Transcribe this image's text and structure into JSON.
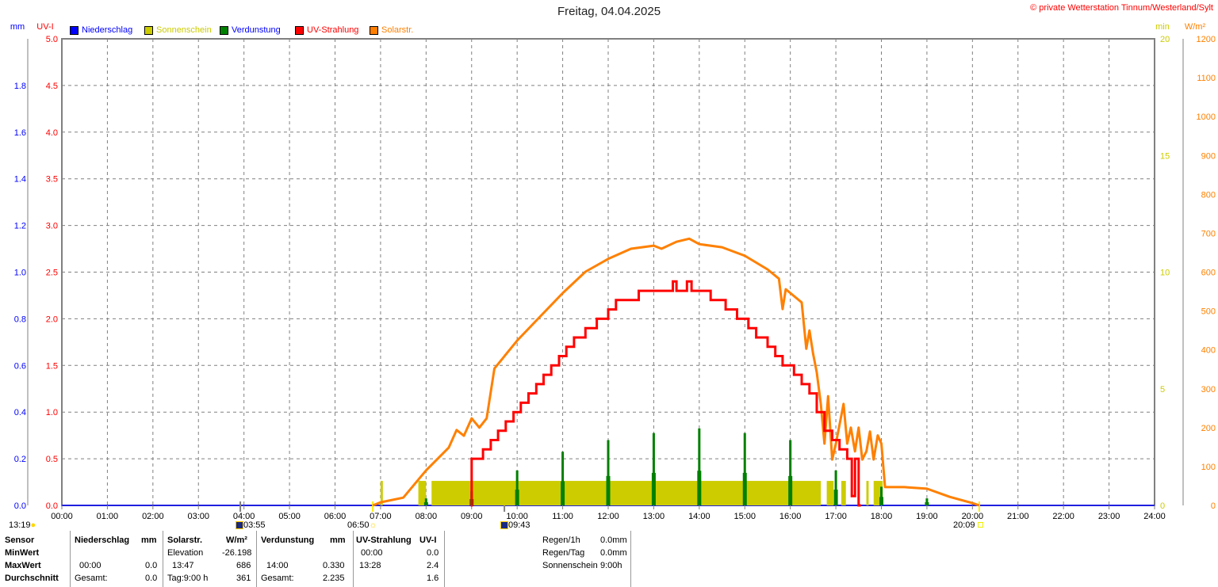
{
  "header": {
    "title": "Freitag, 04.04.2025",
    "copyright": "© private Wetterstation Tinnum/Westerland/Sylt"
  },
  "legend": [
    {
      "label": "Niederschlag",
      "color": "#0000ff",
      "text_color": "#0000ff"
    },
    {
      "label": "Sonnenschein",
      "color": "#cccc00",
      "text_color": "#cccc00"
    },
    {
      "label": "Verdunstung",
      "color": "#008000",
      "text_color": "#0000ff"
    },
    {
      "label": "UV-Strahlung",
      "color": "#ff0000",
      "text_color": "#ff0000"
    },
    {
      "label": "Solarstr.",
      "color": "#ff8000",
      "text_color": "#ff8000"
    }
  ],
  "colors": {
    "mm": "#0000ff",
    "uv": "#ff0000",
    "min": "#cccc00",
    "wm2": "#ff8000",
    "sun": "#cccc00",
    "evap": "#008000",
    "grid": "#808080"
  },
  "chart_data": {
    "type": "line",
    "title": "Freitag, 04.04.2025",
    "grid": true,
    "legend_placement": "top-left",
    "x_axis": {
      "unit": "hours",
      "range": [
        0,
        24
      ],
      "tick_labels": [
        "00:00",
        "01:00",
        "02:00",
        "03:00",
        "04:00",
        "05:00",
        "06:00",
        "07:00",
        "08:00",
        "09:00",
        "10:00",
        "11:00",
        "12:00",
        "13:00",
        "14:00",
        "15:00",
        "16:00",
        "17:00",
        "18:00",
        "19:00",
        "20:00",
        "21:00",
        "22:00",
        "23:00",
        "24:00"
      ]
    },
    "axes": {
      "mm": {
        "label": "mm",
        "range": [
          0,
          2.0
        ],
        "tick_labels": [
          "0.0",
          "0.2",
          "0.4",
          "0.6",
          "0.8",
          "1.0",
          "1.2",
          "1.4",
          "1.6",
          "1.8"
        ]
      },
      "uv": {
        "label": "UV-I",
        "range": [
          0,
          5.0
        ],
        "tick_labels": [
          "0.0",
          "0.5",
          "1.0",
          "1.5",
          "2.0",
          "2.5",
          "3.0",
          "3.5",
          "4.0",
          "4.5",
          "5.0"
        ]
      },
      "min": {
        "label": "min",
        "range": [
          0,
          20
        ],
        "tick_labels": [
          "0",
          "5",
          "10",
          "15",
          "20"
        ]
      },
      "wm2": {
        "label": "W/m²",
        "range": [
          0,
          1200
        ],
        "tick_labels": [
          "0",
          "100",
          "200",
          "300",
          "400",
          "500",
          "600",
          "700",
          "800",
          "900",
          "1000",
          "1100",
          "1200"
        ]
      }
    },
    "series": [
      {
        "name": "Solarstr.",
        "axis": "wm2",
        "kind": "line",
        "points": [
          [
            6.83,
            0
          ],
          [
            7.0,
            8
          ],
          [
            7.5,
            20
          ],
          [
            8.0,
            90
          ],
          [
            8.5,
            149
          ],
          [
            8.67,
            194
          ],
          [
            8.83,
            179
          ],
          [
            9.0,
            224
          ],
          [
            9.17,
            200
          ],
          [
            9.33,
            224
          ],
          [
            9.5,
            352
          ],
          [
            10.0,
            424
          ],
          [
            10.5,
            485
          ],
          [
            11.0,
            546
          ],
          [
            11.5,
            601
          ],
          [
            12.0,
            634
          ],
          [
            12.5,
            660
          ],
          [
            13.0,
            668
          ],
          [
            13.17,
            660
          ],
          [
            13.5,
            678
          ],
          [
            13.78,
            686
          ],
          [
            14.0,
            672
          ],
          [
            14.5,
            664
          ],
          [
            15.0,
            642
          ],
          [
            15.5,
            607
          ],
          [
            15.75,
            583
          ],
          [
            15.83,
            505
          ],
          [
            15.9,
            556
          ],
          [
            16.25,
            522
          ],
          [
            16.35,
            403
          ],
          [
            16.42,
            450
          ],
          [
            16.5,
            390
          ],
          [
            16.58,
            342
          ],
          [
            16.67,
            261
          ],
          [
            16.75,
            159
          ],
          [
            16.83,
            281
          ],
          [
            16.92,
            118
          ],
          [
            17.0,
            159
          ],
          [
            17.17,
            261
          ],
          [
            17.25,
            159
          ],
          [
            17.33,
            200
          ],
          [
            17.42,
            139
          ],
          [
            17.5,
            200
          ],
          [
            17.58,
            118
          ],
          [
            17.67,
            139
          ],
          [
            17.75,
            190
          ],
          [
            17.83,
            118
          ],
          [
            17.92,
            180
          ],
          [
            18.0,
            159
          ],
          [
            18.08,
            47
          ],
          [
            18.5,
            47
          ],
          [
            19.0,
            43
          ],
          [
            19.5,
            22
          ],
          [
            20.0,
            6
          ],
          [
            20.15,
            0
          ]
        ]
      },
      {
        "name": "UV-Strahlung",
        "axis": "uv",
        "kind": "step",
        "points": [
          [
            8.98,
            0
          ],
          [
            9.0,
            0.5
          ],
          [
            9.25,
            0.6
          ],
          [
            9.42,
            0.7
          ],
          [
            9.58,
            0.8
          ],
          [
            9.75,
            0.9
          ],
          [
            9.92,
            1.0
          ],
          [
            10.08,
            1.1
          ],
          [
            10.25,
            1.2
          ],
          [
            10.42,
            1.3
          ],
          [
            10.58,
            1.4
          ],
          [
            10.75,
            1.5
          ],
          [
            10.92,
            1.6
          ],
          [
            11.08,
            1.7
          ],
          [
            11.25,
            1.8
          ],
          [
            11.5,
            1.9
          ],
          [
            11.75,
            2.0
          ],
          [
            12.0,
            2.1
          ],
          [
            12.17,
            2.2
          ],
          [
            12.67,
            2.3
          ],
          [
            13.42,
            2.4
          ],
          [
            13.5,
            2.3
          ],
          [
            13.73,
            2.4
          ],
          [
            13.83,
            2.3
          ],
          [
            14.25,
            2.2
          ],
          [
            14.58,
            2.1
          ],
          [
            14.83,
            2.0
          ],
          [
            15.08,
            1.9
          ],
          [
            15.25,
            1.8
          ],
          [
            15.5,
            1.7
          ],
          [
            15.67,
            1.6
          ],
          [
            15.83,
            1.5
          ],
          [
            16.08,
            1.4
          ],
          [
            16.25,
            1.3
          ],
          [
            16.42,
            1.2
          ],
          [
            16.58,
            1.0
          ],
          [
            16.75,
            0.8
          ],
          [
            16.92,
            0.7
          ],
          [
            17.08,
            0.6
          ],
          [
            17.25,
            0.5
          ],
          [
            17.35,
            0.1
          ],
          [
            17.42,
            0.5
          ],
          [
            17.5,
            0.0
          ],
          [
            17.55,
            0.0
          ]
        ]
      },
      {
        "name": "Sonnenschein",
        "axis": "min",
        "kind": "bars",
        "intervals": [
          [
            7.0,
            7.05,
            1.05
          ],
          [
            7.83,
            8.0,
            1.05
          ],
          [
            8.12,
            16.67,
            1.05
          ],
          [
            16.8,
            16.95,
            1.05
          ],
          [
            17.12,
            17.22,
            1.05
          ],
          [
            17.67,
            17.72,
            1.05
          ],
          [
            17.83,
            18.03,
            1.05
          ]
        ]
      },
      {
        "name": "Verdunstung",
        "axis": "mm",
        "kind": "spikes",
        "points": [
          [
            8.0,
            0.03
          ],
          [
            9.0,
            0.06
          ],
          [
            10.0,
            0.15
          ],
          [
            11.0,
            0.23
          ],
          [
            12.0,
            0.28
          ],
          [
            13.0,
            0.31
          ],
          [
            14.0,
            0.33
          ],
          [
            15.0,
            0.31
          ],
          [
            16.0,
            0.28
          ],
          [
            17.0,
            0.15
          ],
          [
            18.0,
            0.08
          ],
          [
            19.0,
            0.03
          ]
        ]
      }
    ]
  },
  "sun_events": {
    "day_length": "13:19",
    "moonset": "03:55",
    "sunrise": "06:50",
    "moonrise": "09:43",
    "sunset": "20:09"
  },
  "table": {
    "sensor": "Sensor",
    "minwert": "MinWert",
    "maxwert": "MaxWert",
    "durchschnitt": "Durchschnitt",
    "niederschlag": {
      "header": "Niederschlag",
      "unit": "mm",
      "max_time": "00:00",
      "max": "0.0",
      "avg_label": "Gesamt:",
      "avg": "0.0"
    },
    "solar": {
      "header": "Solarstr.",
      "unit": "W/m²",
      "min_label": "Elevation",
      "min": "-26.198",
      "max_time": "13:47",
      "max": "686",
      "avg_label": "Tag:9:00 h",
      "avg": "361"
    },
    "verdunstung": {
      "header": "Verdunstung",
      "unit": "mm",
      "max_time": "14:00",
      "max": "0.330",
      "avg_label": "Gesamt:",
      "avg": "2.235"
    },
    "uv": {
      "header": "UV-Strahlung",
      "unit": "UV-I",
      "min_time": "00:00",
      "min": "0.0",
      "max_time": "13:28",
      "max": "2.4",
      "avg": "1.6"
    },
    "summary": [
      {
        "label": "Regen/1h",
        "value": "0.0mm"
      },
      {
        "label": "Regen/Tag",
        "value": "0.0mm"
      },
      {
        "label": "Sonnenschein",
        "value": "9:00h"
      }
    ]
  }
}
